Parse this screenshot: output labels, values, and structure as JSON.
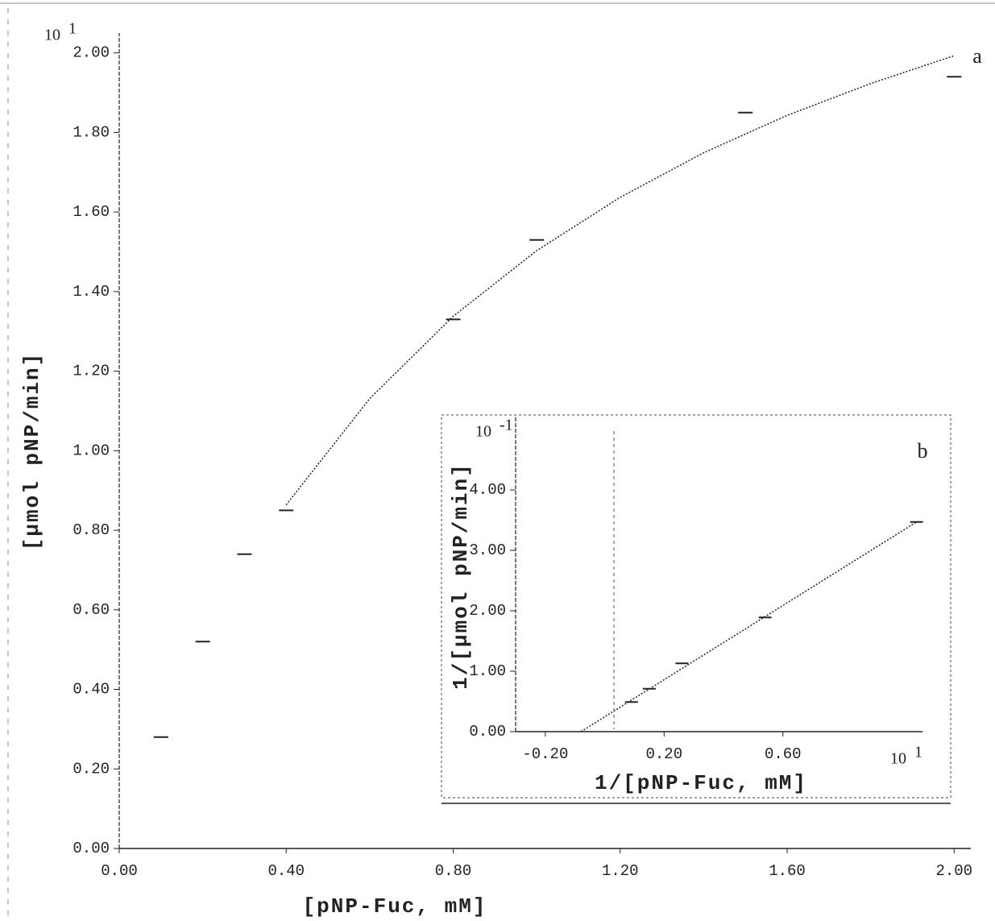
{
  "chart_data": [
    {
      "type": "scatter",
      "annotation": "a",
      "xlabel": "[pNP-Fuc, mM]",
      "ylabel": "[µmol pNP/min]",
      "y_scale": {
        "base": "10",
        "exponent": "1"
      },
      "xlim": [
        0,
        2.04
      ],
      "ylim": [
        0,
        2.05
      ],
      "xticks": [
        {
          "value": 0,
          "label": "0.00"
        },
        {
          "value": 0.4,
          "label": "0.40"
        },
        {
          "value": 0.8,
          "label": "0.80"
        },
        {
          "value": 1.2,
          "label": "1.20"
        },
        {
          "value": 1.6,
          "label": "1.60"
        },
        {
          "value": 2.0,
          "label": "2.00"
        }
      ],
      "yticks": [
        {
          "value": 0,
          "label": "0.00"
        },
        {
          "value": 0.2,
          "label": "0.20"
        },
        {
          "value": 0.4,
          "label": "0.40"
        },
        {
          "value": 0.6,
          "label": "0.60"
        },
        {
          "value": 0.8,
          "label": "0.80"
        },
        {
          "value": 1.0,
          "label": "1.00"
        },
        {
          "value": 1.2,
          "label": "1.20"
        },
        {
          "value": 1.4,
          "label": "1.40"
        },
        {
          "value": 1.6,
          "label": "1.60"
        },
        {
          "value": 1.8,
          "label": "1.80"
        },
        {
          "value": 2.0,
          "label": "2.00"
        }
      ],
      "series": [
        {
          "mode": "marker",
          "color": "#222222",
          "x": [
            0.1,
            0.2,
            0.3,
            0.4,
            0.8,
            1.0,
            1.5,
            2.0
          ],
          "values": [
            0.28,
            0.52,
            0.74,
            0.85,
            1.33,
            1.53,
            1.85,
            1.94
          ]
        },
        {
          "mode": "line",
          "color": "#222222",
          "x": [
            0.4,
            0.6,
            0.8,
            1.0,
            1.2,
            1.4,
            1.6,
            1.8,
            2.0
          ],
          "values": [
            0.864,
            1.131,
            1.338,
            1.503,
            1.637,
            1.749,
            1.843,
            1.923,
            1.993
          ]
        }
      ]
    },
    {
      "type": "scatter",
      "annotation": "b",
      "xlabel": "1/[pNP-Fuc, mM]",
      "ylabel": "1/[µmol pNP/min]",
      "y_scale": {
        "base": "10",
        "exponent": "-1"
      },
      "x_scale": {
        "base": "10",
        "exponent": "1"
      },
      "xlim": [
        -0.3,
        1.07
      ],
      "ylim": [
        0,
        5.2
      ],
      "xticks": [
        {
          "value": -0.2,
          "label": "-0.20"
        },
        {
          "value": 0.2,
          "label": "0.20"
        },
        {
          "value": 0.6,
          "label": "0.60"
        }
      ],
      "yticks": [
        {
          "value": 0,
          "label": "0.00"
        },
        {
          "value": 1,
          "label": "1.00"
        },
        {
          "value": 2,
          "label": "2.00"
        },
        {
          "value": 3,
          "label": "3.00"
        },
        {
          "value": 4,
          "label": "4.00"
        }
      ],
      "series": [
        {
          "mode": "marker",
          "color": "#222222",
          "x": [
            0.09,
            0.15,
            0.26,
            0.54,
            1.05
          ],
          "values": [
            0.49,
            0.71,
            1.13,
            1.89,
            3.47
          ]
        },
        {
          "mode": "line",
          "color": "#222222",
          "x": [
            -0.08,
            1.05
          ],
          "values": [
            0,
            3.47
          ]
        }
      ]
    }
  ]
}
